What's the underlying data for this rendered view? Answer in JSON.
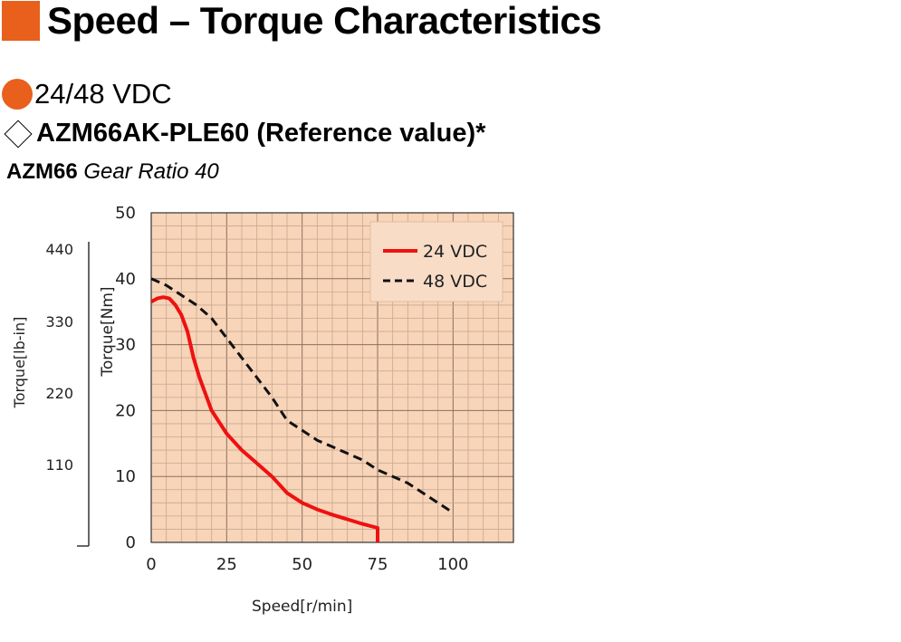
{
  "header": {
    "title": "Speed – Torque Characteristics"
  },
  "voltage": {
    "label": "24/48 VDC"
  },
  "model": {
    "label": "AZM66AK-PLE60 (Reference value)*"
  },
  "gear": {
    "series": "AZM66",
    "ratio": "Gear Ratio 40"
  },
  "colors": {
    "accent": "#E8601C",
    "plot_bg": "#F8D4B8",
    "grid": "#C8A890",
    "line_24": "#EE1111",
    "line_48": "#111111",
    "legend_bg": "#F9DCC6"
  },
  "chart_data": {
    "type": "line",
    "xlabel": "Speed[r/min]",
    "ylabel": "Torque[Nm]",
    "ylabel_secondary": "Torque[lb-in]",
    "xlim": [
      0,
      120
    ],
    "ylim": [
      0,
      50
    ],
    "x_ticks": [
      "0",
      "25",
      "50",
      "75",
      "100"
    ],
    "y_ticks": [
      "0",
      "10",
      "20",
      "30",
      "40",
      "50"
    ],
    "y2_ticks": [
      "110",
      "220",
      "330",
      "440"
    ],
    "grid": true,
    "legend_position": "top-right",
    "series": [
      {
        "name": "24 VDC",
        "style": "solid",
        "x": [
          0,
          2,
          4,
          6,
          8,
          10,
          12,
          14,
          16,
          18,
          20,
          25,
          30,
          35,
          40,
          45,
          50,
          55,
          60,
          65,
          70,
          75,
          75
        ],
        "y": [
          36.5,
          37,
          37.2,
          37,
          36,
          34.5,
          32,
          28,
          25,
          22.5,
          20,
          16.5,
          14,
          12,
          10,
          7.5,
          6,
          5,
          4.2,
          3.5,
          2.8,
          2.2,
          0
        ]
      },
      {
        "name": "48 VDC",
        "style": "dashed",
        "x": [
          0,
          5,
          10,
          15,
          20,
          25,
          30,
          35,
          40,
          45,
          50,
          55,
          60,
          65,
          70,
          75,
          80,
          85,
          90,
          95,
          100
        ],
        "y": [
          40,
          39,
          37.5,
          36,
          34,
          31,
          28,
          25,
          22,
          18.5,
          17,
          15.5,
          14.5,
          13.5,
          12.5,
          11,
          10,
          9,
          7.5,
          6,
          4.5
        ]
      }
    ]
  }
}
